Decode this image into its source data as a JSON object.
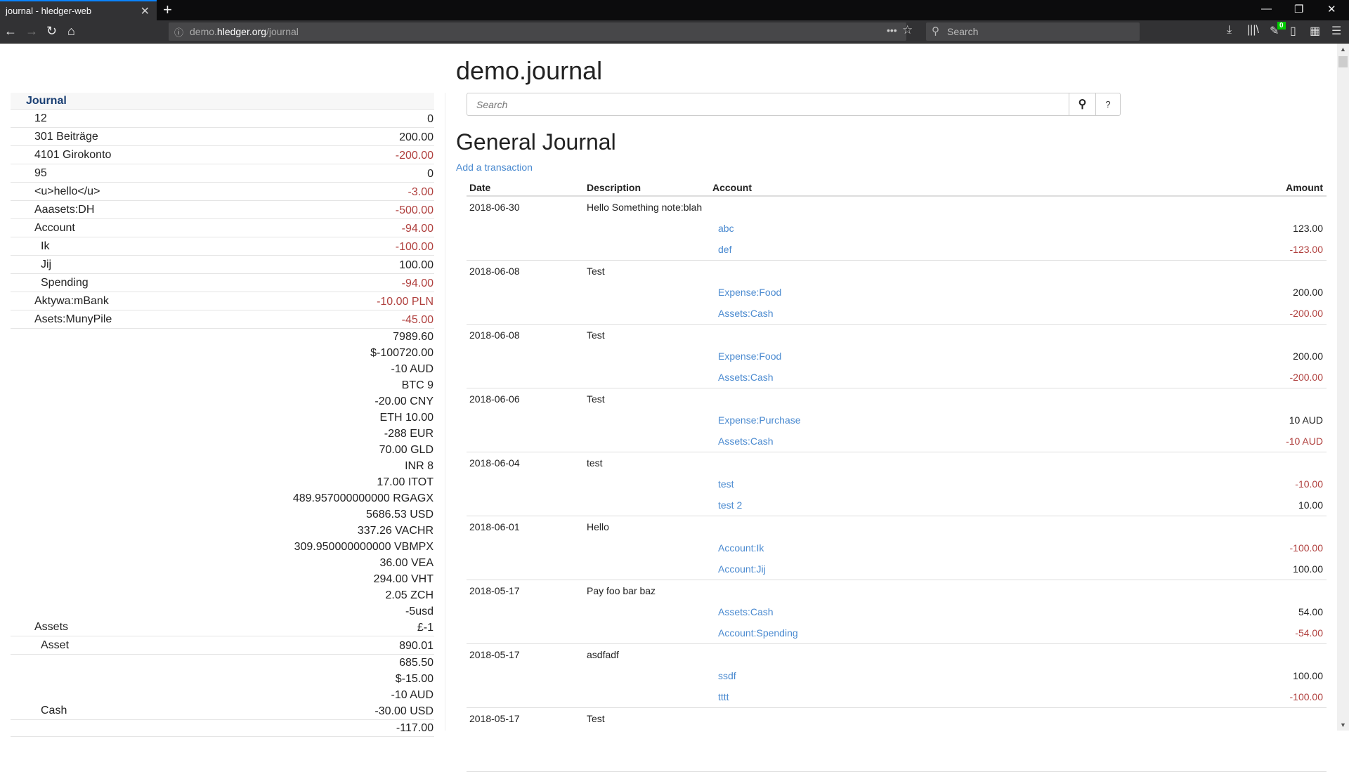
{
  "browser": {
    "tab_title": "journal - hledger-web",
    "url_host_pre": "demo.",
    "url_host": "hledger.org",
    "url_path": "/journal",
    "search_placeholder": "Search",
    "badge": "0"
  },
  "sidebar": {
    "header": "Journal",
    "rows": [
      {
        "name": "12",
        "amounts": [
          "0"
        ],
        "indent": 0,
        "neg": false
      },
      {
        "name": "301 Beiträge",
        "amounts": [
          "200.00"
        ],
        "indent": 0,
        "neg": false
      },
      {
        "name": "4101 Girokonto",
        "amounts": [
          "-200.00"
        ],
        "indent": 0,
        "neg": true
      },
      {
        "name": "95",
        "amounts": [
          "0"
        ],
        "indent": 0,
        "neg": false
      },
      {
        "name": "<u>hello</u>",
        "amounts": [
          "-3.00"
        ],
        "indent": 0,
        "neg": true
      },
      {
        "name": "Aaasets:DH",
        "amounts": [
          "-500.00"
        ],
        "indent": 0,
        "neg": true
      },
      {
        "name": "Account",
        "amounts": [
          "-94.00"
        ],
        "indent": 0,
        "neg": true
      },
      {
        "name": "Ik",
        "amounts": [
          "-100.00"
        ],
        "indent": 1,
        "neg": true
      },
      {
        "name": "Jij",
        "amounts": [
          "100.00"
        ],
        "indent": 1,
        "neg": false
      },
      {
        "name": "Spending",
        "amounts": [
          "-94.00"
        ],
        "indent": 1,
        "neg": true
      },
      {
        "name": "Aktywa:mBank",
        "amounts": [
          "-10.00 PLN"
        ],
        "indent": 0,
        "neg": true
      },
      {
        "name": "Asets:MunyPile",
        "amounts": [
          "-45.00"
        ],
        "indent": 0,
        "neg": true
      },
      {
        "name": "Assets",
        "amounts": [
          "7989.60",
          "$-100720.00",
          "-10 AUD",
          "BTC 9",
          "-20.00 CNY",
          "ETH 10.00",
          "-288 EUR",
          "70.00 GLD",
          "INR 8",
          "17.00 ITOT",
          "489.957000000000 RGAGX",
          "5686.53 USD",
          "337.26 VACHR",
          "309.950000000000 VBMPX",
          "36.00 VEA",
          "294.00 VHT",
          "2.05 ZCH",
          "-5usd",
          "£-1"
        ],
        "indent": 0,
        "neg": false
      },
      {
        "name": "Asset",
        "amounts": [
          "890.01"
        ],
        "indent": 1,
        "neg": false
      },
      {
        "name": "Cash",
        "amounts": [
          "685.50",
          "$-15.00",
          "-10 AUD",
          "-30.00 USD"
        ],
        "indent": 1,
        "neg": false
      },
      {
        "name": "",
        "amounts": [
          "-117.00"
        ],
        "indent": 1,
        "neg": false
      }
    ]
  },
  "main": {
    "title": "demo.journal",
    "search_placeholder": "Search",
    "help_label": "?",
    "journal_title": "General Journal",
    "add_transaction": "Add a transaction",
    "columns": {
      "date": "Date",
      "description": "Description",
      "account": "Account",
      "amount": "Amount"
    },
    "transactions": [
      {
        "date": "2018-06-30",
        "description": "Hello Something note:blah",
        "postings": [
          {
            "account": "abc",
            "amount": "123.00",
            "neg": false
          },
          {
            "account": "def",
            "amount": "-123.00",
            "neg": true
          }
        ]
      },
      {
        "date": "2018-06-08",
        "description": "Test",
        "postings": [
          {
            "account": "Expense:Food",
            "amount": "200.00",
            "neg": false
          },
          {
            "account": "Assets:Cash",
            "amount": "-200.00",
            "neg": true
          }
        ]
      },
      {
        "date": "2018-06-08",
        "description": "Test",
        "postings": [
          {
            "account": "Expense:Food",
            "amount": "200.00",
            "neg": false
          },
          {
            "account": "Assets:Cash",
            "amount": "-200.00",
            "neg": true
          }
        ]
      },
      {
        "date": "2018-06-06",
        "description": "Test",
        "postings": [
          {
            "account": "Expense:Purchase",
            "amount": "10 AUD",
            "neg": false
          },
          {
            "account": "Assets:Cash",
            "amount": "-10 AUD",
            "neg": true
          }
        ]
      },
      {
        "date": "2018-06-04",
        "description": "test",
        "postings": [
          {
            "account": "test",
            "amount": "-10.00",
            "neg": true
          },
          {
            "account": "test 2",
            "amount": "10.00",
            "neg": false
          }
        ]
      },
      {
        "date": "2018-06-01",
        "description": "Hello",
        "postings": [
          {
            "account": "Account:Ik",
            "amount": "-100.00",
            "neg": true
          },
          {
            "account": "Account:Jij",
            "amount": "100.00",
            "neg": false
          }
        ]
      },
      {
        "date": "2018-05-17",
        "description": "Pay foo bar baz",
        "postings": [
          {
            "account": "Assets:Cash",
            "amount": "54.00",
            "neg": false
          },
          {
            "account": "Account:Spending",
            "amount": "-54.00",
            "neg": true
          }
        ]
      },
      {
        "date": "2018-05-17",
        "description": "asdfadf",
        "postings": [
          {
            "account": "ssdf",
            "amount": "100.00",
            "neg": false
          },
          {
            "account": "tttt",
            "amount": "-100.00",
            "neg": true
          }
        ]
      },
      {
        "date": "2018-05-17",
        "description": "Test",
        "postings": []
      }
    ]
  },
  "colors": {
    "negative": "#b0403e",
    "link": "#4a8ad0",
    "tab_accent": "#0a84ff"
  }
}
